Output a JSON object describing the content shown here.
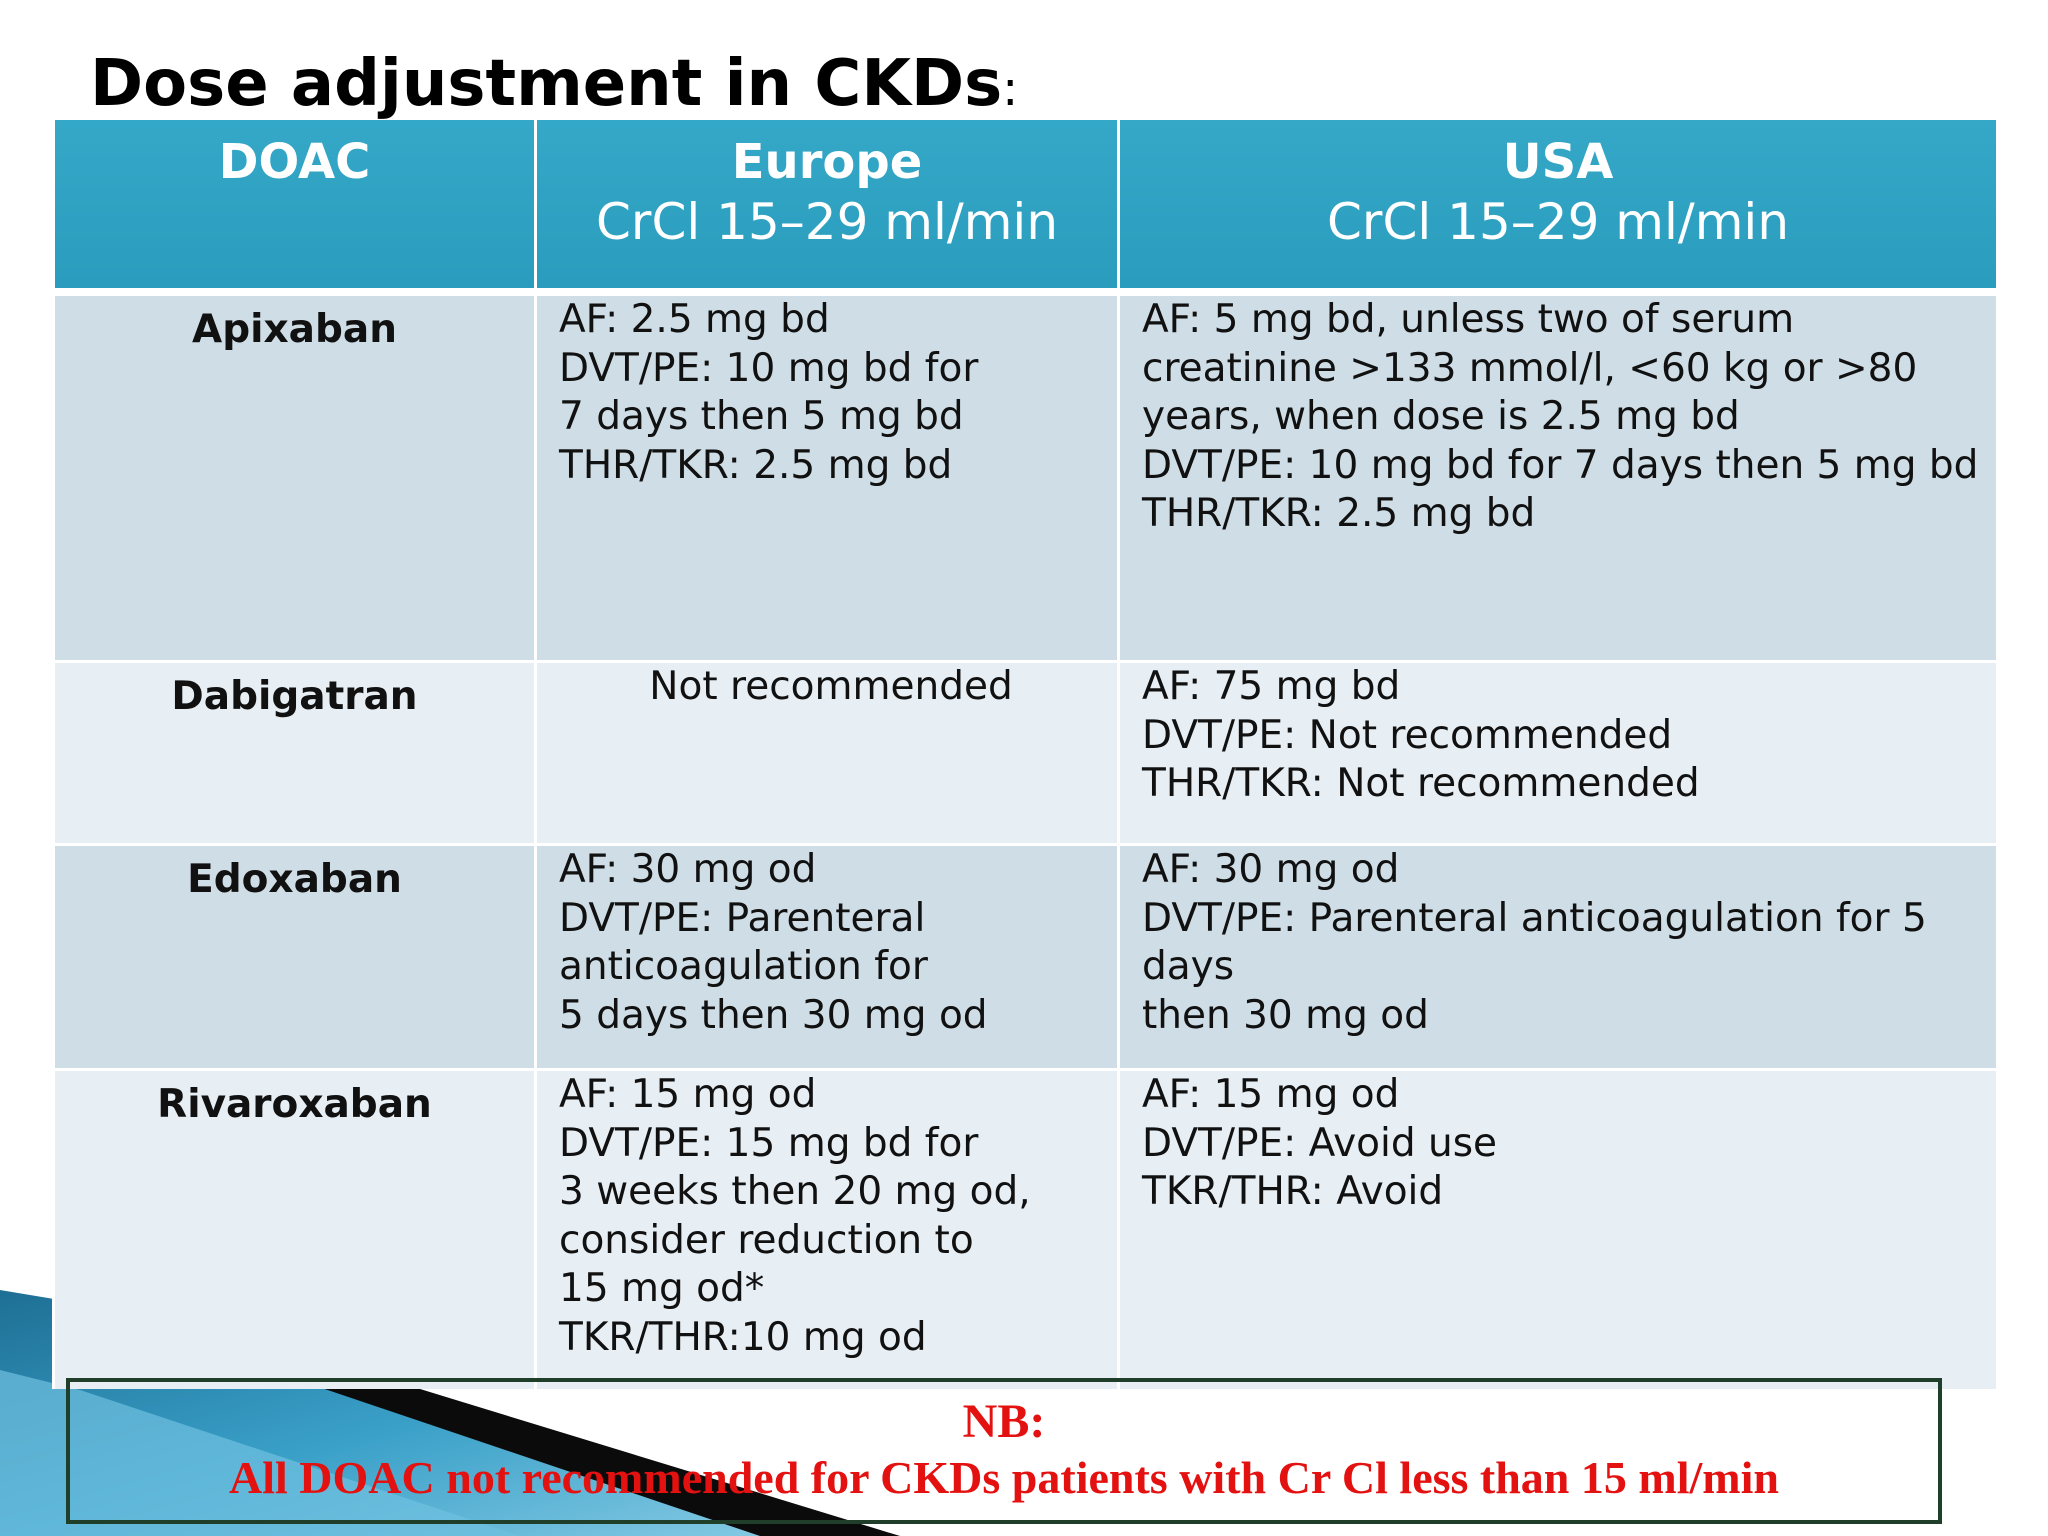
{
  "slide": {
    "title": "Dose adjustment in CKDs",
    "title_suffix": ":"
  },
  "table": {
    "headers": [
      {
        "top": "DOAC",
        "sub": ""
      },
      {
        "top": "Europe",
        "sub": "CrCl 15–29 ml/min"
      },
      {
        "top": "USA",
        "sub": "CrCl 15–29 ml/min"
      }
    ],
    "rows": [
      {
        "drug": "Apixaban",
        "europe": [
          "AF: 2.5 mg bd",
          "DVT/PE: 10 mg bd for",
          "7 days then 5 mg bd",
          "THR/TKR: 2.5 mg bd"
        ],
        "usa": [
          "AF: 5 mg bd, unless two of serum",
          "creatinine >133 mmol/l, <60 kg or >80",
          "years, when dose is 2.5 mg bd",
          "DVT/PE: 10 mg bd for 7 days then 5 mg bd",
          "THR/TKR: 2.5 mg bd"
        ]
      },
      {
        "drug": "Dabigatran",
        "europe": [
          "Not recommended"
        ],
        "usa": [
          "AF: 75 mg bd",
          "DVT/PE: Not recommended",
          "THR/TKR: Not recommended"
        ]
      },
      {
        "drug": "Edoxaban",
        "europe": [
          "AF: 30 mg od",
          "DVT/PE: Parenteral",
          "anticoagulation for",
          "5 days then 30 mg od"
        ],
        "usa": [
          "AF: 30 mg od",
          "DVT/PE: Parenteral anticoagulation for 5",
          "days",
          "then 30 mg od"
        ]
      },
      {
        "drug": "Rivaroxaban",
        "europe": [
          "AF: 15 mg od",
          "DVT/PE: 15 mg bd for",
          "3 weeks then 20 mg od,",
          "consider reduction to",
          "15 mg od*",
          "TKR/THR:10 mg od"
        ],
        "usa": [
          "AF: 15 mg od",
          "DVT/PE: Avoid use",
          "TKR/THR: Avoid"
        ]
      }
    ]
  },
  "note": {
    "title": "NB:",
    "text": "All DOAC not recommended for CKDs patients with Cr Cl less than 15 ml/min"
  },
  "colors": {
    "header_bg": "#2fa3c3",
    "row_dark": "#cfdee6",
    "row_light": "#e7eef4",
    "note_text": "#e3110f",
    "note_border": "#1f3f2a"
  }
}
